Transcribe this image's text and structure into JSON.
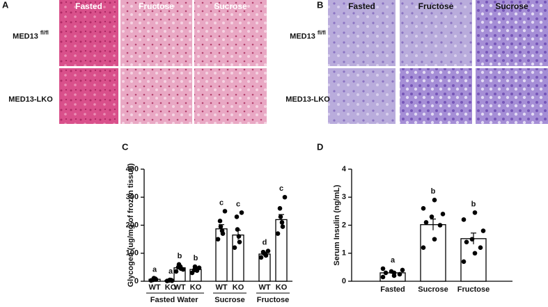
{
  "panels": [
    {
      "label": "A",
      "columns": [
        "Fasted",
        "Fructose",
        "Sucrose"
      ],
      "rows": [
        {
          "text": "MED13",
          "sup": "fl/fl"
        },
        {
          "text": "MED13-LKO"
        }
      ]
    },
    {
      "label": "B",
      "columns": [
        "Fasted",
        "Fructose",
        "Sucrose"
      ],
      "rows": [
        {
          "text": "MED13",
          "sup": "fl/fl"
        },
        {
          "text": "MED13-LKO"
        }
      ]
    }
  ],
  "chart_data": [
    {
      "type": "bar",
      "panel": "C",
      "ylabel": "Glycogen (ug/mg of frozen tissue)",
      "categories": [
        "WT",
        "KO",
        "WT",
        "KO",
        "WT",
        "KO",
        "WT",
        "KO"
      ],
      "groups": [
        "Fasted",
        "Water",
        "Sucrose",
        "Fructose"
      ],
      "values": [
        7,
        3,
        48,
        42,
        187,
        165,
        97,
        220
      ],
      "errors": [
        2,
        1,
        6,
        5,
        15,
        17,
        5,
        18
      ],
      "letters": [
        "a",
        "a",
        "b",
        "b",
        "c",
        "c",
        "d",
        "c"
      ],
      "points": [
        [
          3,
          6,
          9,
          11,
          5
        ],
        [
          1,
          2,
          4,
          5,
          3
        ],
        [
          35,
          45,
          52,
          60,
          50,
          42
        ],
        [
          30,
          38,
          45,
          52,
          40,
          48
        ],
        [
          150,
          170,
          180,
          195,
          215,
          250
        ],
        [
          120,
          140,
          160,
          185,
          230,
          245
        ],
        [
          85,
          92,
          96,
          100,
          104,
          108
        ],
        [
          170,
          195,
          210,
          230,
          260,
          300
        ]
      ],
      "ylim": [
        0,
        400
      ],
      "yticks": [
        0,
        100,
        200,
        300,
        400
      ],
      "color": "#ffffff"
    },
    {
      "type": "bar",
      "panel": "D",
      "ylabel": "Serum Insulin (ng/mL)",
      "categories": [
        "Fasted",
        "Sucrose",
        "Fructose"
      ],
      "values": [
        0.3,
        2.02,
        1.52
      ],
      "errors": [
        0.05,
        0.2,
        0.2
      ],
      "letters": [
        "a",
        "b",
        "b"
      ],
      "points": [
        [
          0.15,
          0.2,
          0.25,
          0.3,
          0.35,
          0.4,
          0.45,
          0.3
        ],
        [
          1.2,
          1.5,
          2.0,
          2.1,
          2.3,
          2.4,
          2.6,
          2.9
        ],
        [
          0.7,
          1.0,
          1.2,
          1.4,
          1.5,
          1.8,
          2.2,
          2.45
        ]
      ],
      "ylim": [
        0,
        4
      ],
      "yticks": [
        0,
        1,
        2,
        3,
        4
      ],
      "color": "#ffffff"
    }
  ]
}
